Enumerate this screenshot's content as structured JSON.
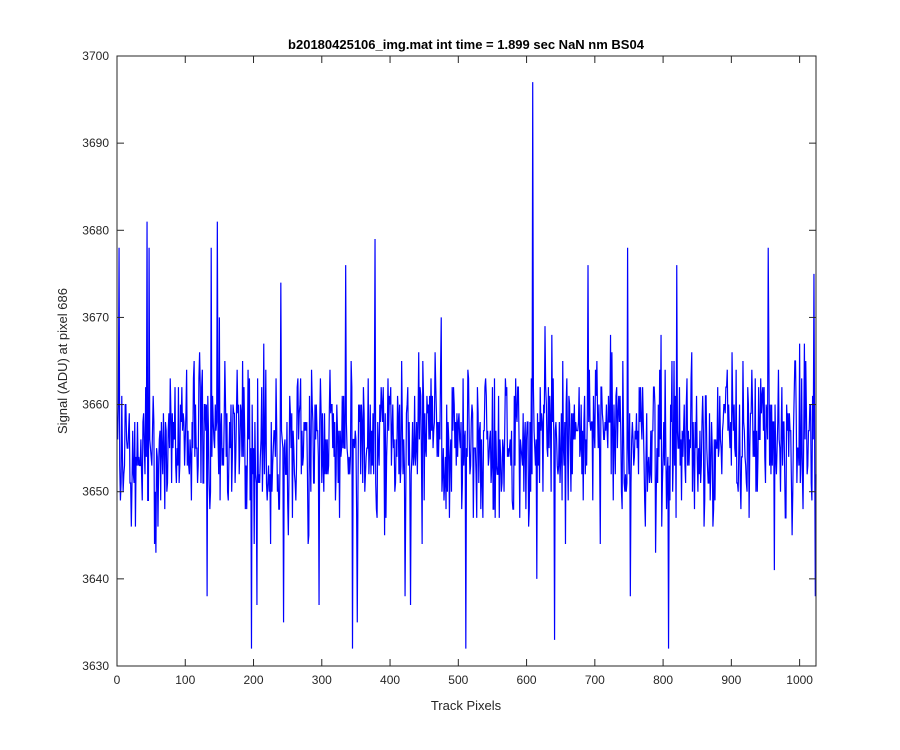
{
  "chart_data": {
    "type": "line",
    "title": "b20180425106_img.mat int time = 1.899 sec  NaN nm BS04",
    "xlabel": "Track Pixels",
    "ylabel": "Signal (ADU) at pixel 686",
    "xlim": [
      0,
      1024
    ],
    "ylim": [
      3630,
      3700
    ],
    "xticks": [
      0,
      100,
      200,
      300,
      400,
      500,
      600,
      700,
      800,
      900,
      1000
    ],
    "yticks": [
      3630,
      3640,
      3650,
      3660,
      3670,
      3680,
      3690,
      3700
    ],
    "grid": false,
    "legend": "none",
    "colors": {
      "series": "#0000ff",
      "axes": "#262626",
      "background": "#ffffff"
    },
    "series": [
      {
        "x_start": 1,
        "x_step": 1,
        "count": 1024,
        "baseline": 3656,
        "typical_low": 3645,
        "typical_high": 3667,
        "values": [
          [
            1,
            3656
          ],
          [
            3,
            3678
          ],
          [
            9,
            3650
          ],
          [
            44,
            3681
          ],
          [
            47,
            3678
          ],
          [
            57,
            3643
          ],
          [
            102,
            3664
          ],
          [
            132,
            3638
          ],
          [
            138,
            3678
          ],
          [
            147,
            3681
          ],
          [
            150,
            3670
          ],
          [
            197,
            3632
          ],
          [
            205,
            3637
          ],
          [
            240,
            3674
          ],
          [
            244,
            3635
          ],
          [
            296,
            3637
          ],
          [
            335,
            3676
          ],
          [
            345,
            3632
          ],
          [
            352,
            3635
          ],
          [
            378,
            3679
          ],
          [
            422,
            3638
          ],
          [
            430,
            3637
          ],
          [
            443,
            3656
          ],
          [
            475,
            3670
          ],
          [
            511,
            3632
          ],
          [
            531,
            3657
          ],
          [
            609,
            3697
          ],
          [
            615,
            3640
          ],
          [
            641,
            3633
          ],
          [
            690,
            3676
          ],
          [
            703,
            3665
          ],
          [
            748,
            3678
          ],
          [
            752,
            3638
          ],
          [
            798,
            3646
          ],
          [
            808,
            3632
          ],
          [
            820,
            3676
          ],
          [
            917,
            3665
          ],
          [
            954,
            3678
          ],
          [
            963,
            3641
          ],
          [
            1007,
            3667
          ],
          [
            1021,
            3675
          ],
          [
            1023,
            3638
          ],
          [
            1024,
            3652
          ]
        ]
      }
    ]
  }
}
